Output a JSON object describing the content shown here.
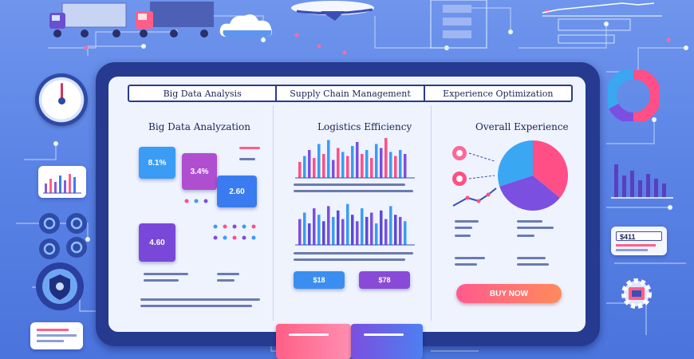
{
  "tabs": [
    {
      "label": "Big Data Analysis"
    },
    {
      "label": "Supply Chain Management"
    },
    {
      "label": "Experience Optimization"
    }
  ],
  "panels": {
    "big_data": {
      "title": "Big Data Analyzation",
      "cards": [
        {
          "value": "8.1%",
          "color": "#3a9cf5"
        },
        {
          "value": "3.4%",
          "color": "#b04ed0"
        },
        {
          "value": "2.60",
          "color": "#3a7cf0"
        },
        {
          "value": "4.60",
          "color": "#7a48d8"
        }
      ]
    },
    "logistics": {
      "title": "Logistics Efficiency",
      "buttons": [
        {
          "label": "$18",
          "color": "#3a8ef0"
        },
        {
          "label": "$78",
          "color": "#8a4ad8"
        }
      ]
    },
    "experience": {
      "title": "Overall Experience",
      "pie": [
        {
          "value": 0.36,
          "color": "#ff4f86"
        },
        {
          "value": 0.34,
          "color": "#7b4fe0"
        },
        {
          "value": 0.3,
          "color": "#3aa7f3"
        }
      ],
      "cta_label": "BUY NOW"
    }
  },
  "side_widgets": {
    "right_card_label": "$411"
  },
  "colors": {
    "accent_pink": "#ff4f86",
    "accent_purple": "#7b4fe0",
    "accent_blue": "#3aa7f3",
    "frame": "#263a8f"
  },
  "icons": [
    "truck-icon",
    "airplane-icon",
    "cloud-icon",
    "gauge-icon",
    "pie-chart-icon",
    "bar-chart-icon",
    "gear-icon",
    "shield-icon"
  ]
}
